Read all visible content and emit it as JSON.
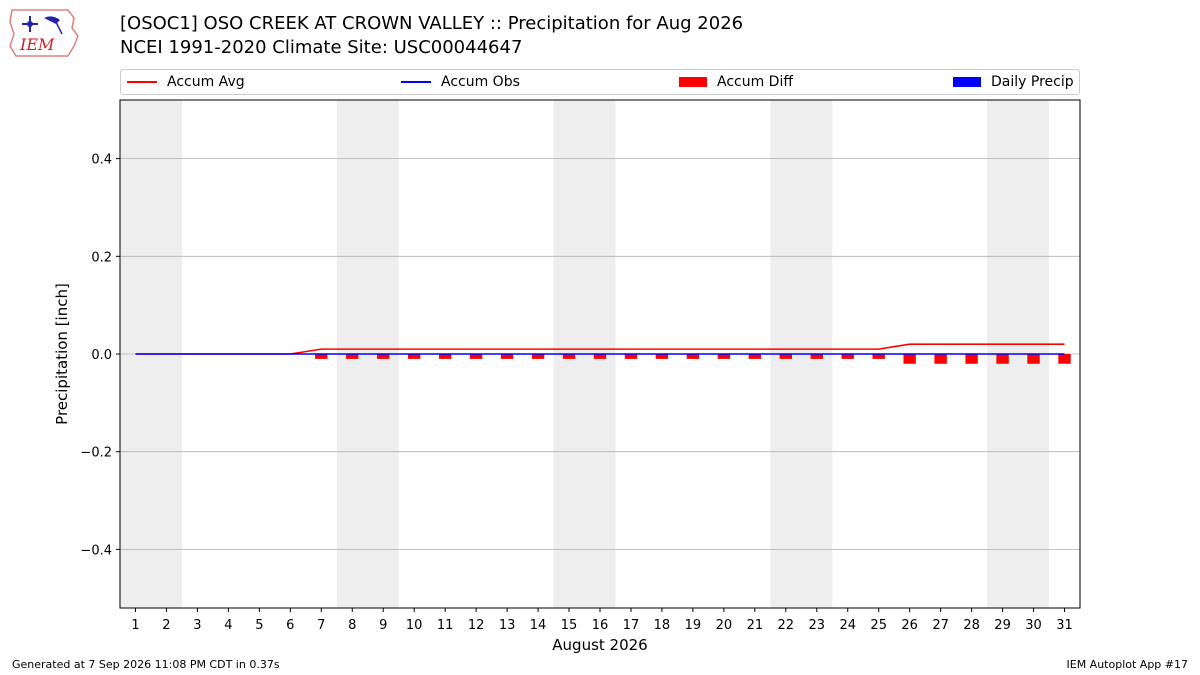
{
  "header": {
    "title_line1": "[OSOC1] OSO CREEK AT CROWN VALLEY :: Precipitation for Aug 2026",
    "title_line2": "NCEI 1991-2020 Climate Site: USC00044647",
    "logo_text": "IEM"
  },
  "legend": {
    "items": [
      {
        "label": "Accum Avg",
        "color": "#ff0000",
        "kind": "line"
      },
      {
        "label": "Accum Obs",
        "color": "#0000ff",
        "kind": "line"
      },
      {
        "label": "Accum Diff",
        "color": "#ff0000",
        "kind": "patch"
      },
      {
        "label": "Daily Precip",
        "color": "#0000ff",
        "kind": "patch"
      }
    ]
  },
  "footer": {
    "left": "Generated at 7 Sep 2026 11:08 PM CDT in 0.37s",
    "right": "IEM Autoplot App #17"
  },
  "chart_data": {
    "type": "line",
    "title": "[OSOC1] OSO CREEK AT CROWN VALLEY :: Precipitation for Aug 2026",
    "subtitle": "NCEI 1991-2020 Climate Site: USC00044647",
    "xlabel": "August 2026",
    "ylabel": "Precipitation [inch]",
    "x": [
      1,
      2,
      3,
      4,
      5,
      6,
      7,
      8,
      9,
      10,
      11,
      12,
      13,
      14,
      15,
      16,
      17,
      18,
      19,
      20,
      21,
      22,
      23,
      24,
      25,
      26,
      27,
      28,
      29,
      30,
      31
    ],
    "xlim": [
      0.5,
      31.5
    ],
    "ylim": [
      -0.52,
      0.52
    ],
    "yticks": [
      -0.4,
      -0.2,
      0.0,
      0.2,
      0.4
    ],
    "ytick_labels": [
      "−0.4",
      "−0.2",
      "0.0",
      "0.2",
      "0.4"
    ],
    "grid": "y",
    "legend_position": "top",
    "weekend_shading": [
      [
        1,
        2
      ],
      [
        8,
        9
      ],
      [
        15,
        16
      ],
      [
        22,
        23
      ],
      [
        29,
        30
      ]
    ],
    "series": [
      {
        "name": "Accum Avg",
        "type": "line",
        "color": "#ff0000",
        "values": [
          0,
          0,
          0,
          0,
          0,
          0,
          0.01,
          0.01,
          0.01,
          0.01,
          0.01,
          0.01,
          0.01,
          0.01,
          0.01,
          0.01,
          0.01,
          0.01,
          0.01,
          0.01,
          0.01,
          0.01,
          0.01,
          0.01,
          0.01,
          0.02,
          0.02,
          0.02,
          0.02,
          0.02,
          0.02
        ]
      },
      {
        "name": "Accum Obs",
        "type": "line",
        "color": "#0000ff",
        "values": [
          0,
          0,
          0,
          0,
          0,
          0,
          0,
          0,
          0,
          0,
          0,
          0,
          0,
          0,
          0,
          0,
          0,
          0,
          0,
          0,
          0,
          0,
          0,
          0,
          0,
          0,
          0,
          0,
          0,
          0,
          0
        ]
      },
      {
        "name": "Accum Diff",
        "type": "bar",
        "color": "#ff0000",
        "values": [
          0,
          0,
          0,
          0,
          0,
          0,
          -0.01,
          -0.01,
          -0.01,
          -0.01,
          -0.01,
          -0.01,
          -0.01,
          -0.01,
          -0.01,
          -0.01,
          -0.01,
          -0.01,
          -0.01,
          -0.01,
          -0.01,
          -0.01,
          -0.01,
          -0.01,
          -0.01,
          -0.02,
          -0.02,
          -0.02,
          -0.02,
          -0.02,
          -0.02
        ]
      },
      {
        "name": "Daily Precip",
        "type": "bar",
        "color": "#0000ff",
        "values": [
          0,
          0,
          0,
          0,
          0,
          0,
          0,
          0,
          0,
          0,
          0,
          0,
          0,
          0,
          0,
          0,
          0,
          0,
          0,
          0,
          0,
          0,
          0,
          0,
          0,
          0,
          0,
          0,
          0,
          0,
          0
        ]
      }
    ]
  }
}
